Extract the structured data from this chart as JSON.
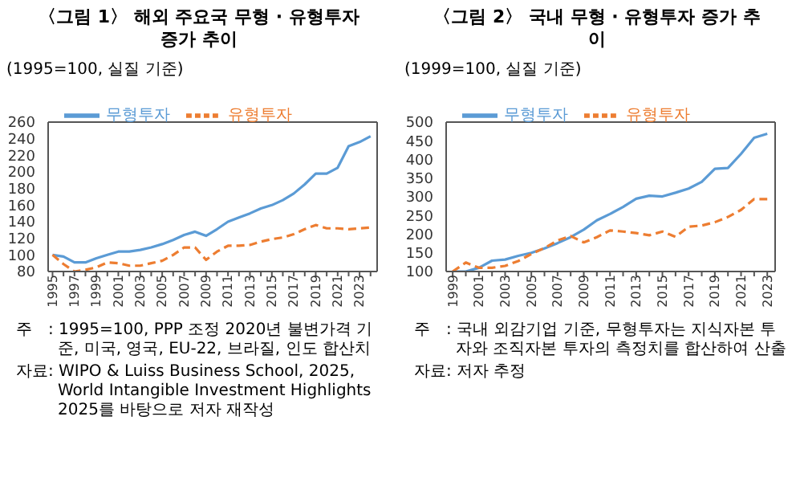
{
  "chart_data": [
    {
      "type": "line",
      "title": "〈그림 1〉 해외 주요국 무형 · 유형투자 증가 추이",
      "ylabel": "(1995=100, 실질 기준)",
      "x": [
        1995,
        1996,
        1997,
        1998,
        1999,
        2000,
        2001,
        2002,
        2003,
        2004,
        2005,
        2006,
        2007,
        2008,
        2009,
        2010,
        2011,
        2012,
        2013,
        2014,
        2015,
        2016,
        2017,
        2018,
        2019,
        2020,
        2021,
        2022,
        2023,
        2024
      ],
      "xlim": [
        1994.6,
        2024.6
      ],
      "xticks": [
        1995,
        {
          "value": 1996,
          "label": null
        },
        1997,
        {
          "value": 1998,
          "label": null
        },
        1999,
        {
          "value": 2000,
          "label": null
        },
        2001,
        {
          "value": 2002,
          "label": null
        },
        2003,
        {
          "value": 2004,
          "label": null
        },
        2005,
        {
          "value": 2006,
          "label": null
        },
        2007,
        {
          "value": 2008,
          "label": null
        },
        2009,
        {
          "value": 2010,
          "label": null
        },
        2011,
        {
          "value": 2012,
          "label": null
        },
        2013,
        {
          "value": 2014,
          "label": null
        },
        2015,
        {
          "value": 2016,
          "label": null
        },
        2017,
        {
          "value": 2018,
          "label": null
        },
        2019,
        {
          "value": 2020,
          "label": null
        },
        2021,
        {
          "value": 2022,
          "label": null
        },
        2023,
        {
          "value": 2024,
          "label": null
        }
      ],
      "ylim": [
        80,
        260
      ],
      "yticks": [
        80,
        100,
        120,
        140,
        160,
        180,
        200,
        220,
        240,
        260
      ],
      "series": [
        {
          "name": "무형투자",
          "color": "#5b9bd5",
          "line_style": "solid",
          "values": [
            100,
            98,
            91,
            91,
            96,
            100,
            104,
            104,
            106,
            109,
            113,
            118,
            124,
            128,
            123,
            131,
            140,
            145,
            150,
            156,
            160,
            166,
            174,
            185,
            198,
            198,
            205,
            231,
            236,
            243
          ]
        },
        {
          "name": "유형투자",
          "color": "#ed7d31",
          "line_style": "dashed",
          "values": [
            100,
            89,
            80,
            82,
            85,
            91,
            90,
            87,
            87,
            90,
            93,
            100,
            109,
            109,
            94,
            104,
            111,
            111,
            112,
            116,
            119,
            121,
            125,
            131,
            136,
            132,
            132,
            131,
            132,
            133
          ]
        }
      ],
      "legend": "top left",
      "marker": "none",
      "grid": false,
      "annotations": [
        "주　: 1995=100, PPP 조정 2020년 불변가격 기준, 미국, 영국, EU-22, 브라질, 인도 합산치",
        "자료: WIPO & Luiss Business School, 2025, World Intangible Investment Highlights 2025를 바탕으로 저자 재작성"
      ]
    },
    {
      "type": "line",
      "title": "〈그림 2〉 국내 무형 · 유형투자 증가 추이",
      "ylabel": "(1999=100, 실질 기준)",
      "x": [
        1999,
        2000,
        2001,
        2002,
        2003,
        2004,
        2005,
        2006,
        2007,
        2008,
        2009,
        2010,
        2011,
        2012,
        2013,
        2014,
        2015,
        2016,
        2017,
        2018,
        2019,
        2020,
        2021,
        2022,
        2023
      ],
      "xlim": [
        1998.5,
        2023.6
      ],
      "xticks": [
        1999,
        {
          "value": 2000,
          "label": null
        },
        2001,
        {
          "value": 2002,
          "label": null
        },
        2003,
        {
          "value": 2004,
          "label": null
        },
        2005,
        {
          "value": 2006,
          "label": null
        },
        2007,
        {
          "value": 2008,
          "label": null
        },
        2009,
        {
          "value": 2010,
          "label": null
        },
        2011,
        {
          "value": 2012,
          "label": null
        },
        2013,
        {
          "value": 2014,
          "label": null
        },
        2015,
        {
          "value": 2016,
          "label": null
        },
        2017,
        {
          "value": 2018,
          "label": null
        },
        2019,
        {
          "value": 2020,
          "label": null
        },
        2021,
        {
          "value": 2022,
          "label": null
        },
        2023
      ],
      "ylim": [
        100,
        500
      ],
      "yticks": [
        100,
        150,
        200,
        250,
        300,
        350,
        400,
        450,
        500
      ],
      "series": [
        {
          "name": "무형투자",
          "color": "#5b9bd5",
          "line_style": "solid",
          "values": [
            100,
            100,
            110,
            129,
            132,
            142,
            150,
            162,
            176,
            192,
            212,
            237,
            254,
            273,
            295,
            303,
            301,
            311,
            322,
            340,
            375,
            377,
            415,
            458,
            469
          ]
        },
        {
          "name": "유형투자",
          "color": "#ed7d31",
          "line_style": "dashed",
          "values": [
            100,
            124,
            110,
            110,
            115,
            128,
            147,
            163,
            183,
            195,
            178,
            192,
            210,
            207,
            203,
            197,
            207,
            193,
            220,
            223,
            232,
            246,
            265,
            294,
            294
          ]
        }
      ],
      "legend": "top left",
      "marker": "none",
      "grid": false,
      "annotations": [
        "주　: 국내 외감기업 기준, 무형투자는 지식자본 투자와 조직자본 투자의 측정치를 합산하여 산출",
        "자료: 저자 추정"
      ]
    }
  ]
}
